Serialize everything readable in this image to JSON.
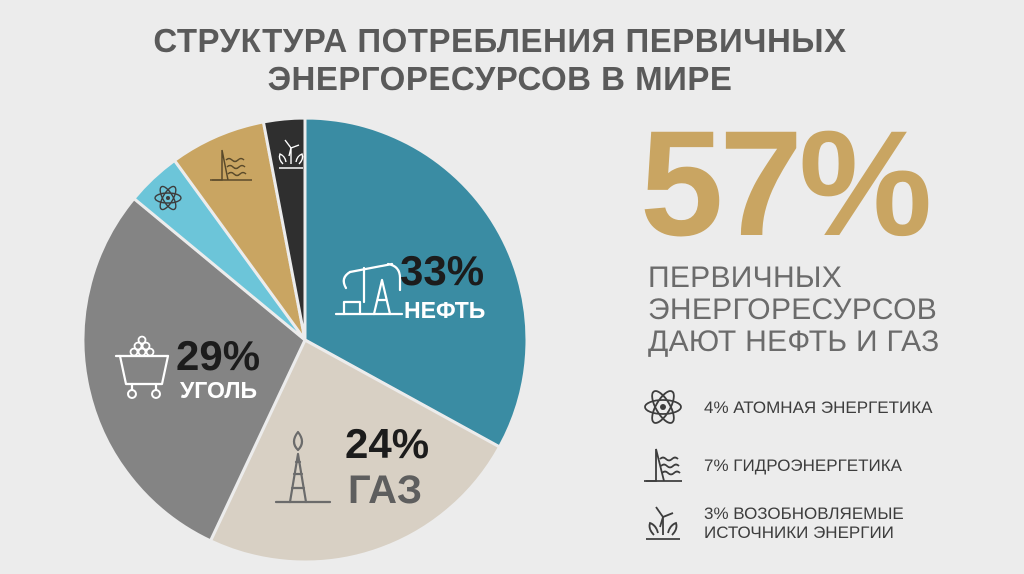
{
  "title": {
    "line1": "СТРУКТУРА ПОТРЕБЛЕНИЯ ПЕРВИЧНЫХ",
    "line2": "ЭНЕРГОРЕСУРСОВ В МИРЕ"
  },
  "highlight": {
    "value": "57%",
    "lines": [
      "ПЕРВИЧНЫХ",
      "ЭНЕРГОРЕСУРСОВ",
      "ДАЮТ НЕФТЬ И ГАЗ"
    ]
  },
  "legend": [
    {
      "icon": "atom-icon",
      "lines": [
        "4% АТОМНАЯ ЭНЕРГЕТИКА"
      ]
    },
    {
      "icon": "hydro-dam-icon",
      "lines": [
        "7% ГИДРОЭНЕРГЕТИКА"
      ]
    },
    {
      "icon": "renewable-turbine-icon",
      "lines": [
        "3% ВОЗОБНОВЛЯЕМЫЕ",
        "ИСТОЧНИКИ ЭНЕРГИИ"
      ]
    }
  ],
  "chart_data": {
    "type": "pie",
    "title": "СТРУКТУРА ПОТРЕБЛЕНИЯ ПЕРВИЧНЫХ ЭНЕРГОРЕСУРСОВ В МИРЕ",
    "slices": [
      {
        "key": "oil",
        "value": 33,
        "pct_label": "33%",
        "label": "НЕФТЬ",
        "color": "#3a8ca3",
        "icon": "oil-pump-icon"
      },
      {
        "key": "gas",
        "value": 24,
        "pct_label": "24%",
        "label": "ГАЗ",
        "color": "#d8d0c4",
        "icon": "gas-rig-icon"
      },
      {
        "key": "coal",
        "value": 29,
        "pct_label": "29%",
        "label": "УГОЛЬ",
        "color": "#848484",
        "icon": "coal-cart-icon"
      },
      {
        "key": "nuclear",
        "value": 4,
        "color": "#6cc5d9",
        "icon": "atom-icon"
      },
      {
        "key": "hydro",
        "value": 7,
        "color": "#c9a562",
        "icon": "hydro-dam-icon"
      },
      {
        "key": "renewable",
        "value": 3,
        "color": "#2f2f2f",
        "icon": "renewable-turbine-icon"
      }
    ]
  }
}
